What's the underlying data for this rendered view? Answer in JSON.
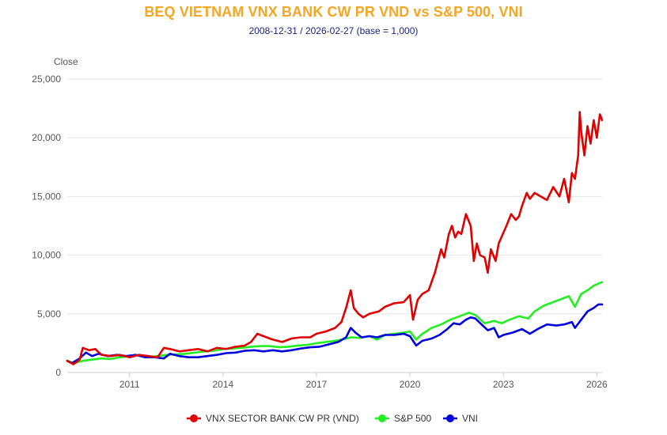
{
  "title": "BEQ VIETNAM VNX BANK CW PR VND vs S&P 500, VNI",
  "subtitle": "2008-12-31 / 2026-02-27 (base = 1,000)",
  "chart_data": {
    "type": "line",
    "title": "BEQ VIETNAM VNX BANK CW PR VND vs S&P 500, VNI",
    "subtitle": "2008-12-31 / 2026-02-27 (base = 1,000)",
    "ylabel": "Close",
    "xlabel": "",
    "xlim": [
      2009.0,
      2026.17
    ],
    "ylim": [
      0,
      25000
    ],
    "yticks": [
      0,
      5000,
      10000,
      15000,
      20000,
      25000
    ],
    "ytick_labels": [
      "0",
      "5,000",
      "10,000",
      "15,000",
      "20,000",
      "25,000"
    ],
    "xticks": [
      2011,
      2014,
      2017,
      2020,
      2023,
      2026
    ],
    "xtick_labels": [
      "2011",
      "2014",
      "2017",
      "2020",
      "2023",
      "2026"
    ],
    "grid": "horizontal",
    "legend_position": "bottom-center",
    "series": [
      {
        "name": "VNX SECTOR BANK CW PR (VND)",
        "color": "#e00000",
        "x": [
          2009.0,
          2009.2,
          2009.4,
          2009.5,
          2009.7,
          2009.9,
          2010.1,
          2010.4,
          2010.7,
          2011.0,
          2011.3,
          2011.6,
          2011.9,
          2012.1,
          2012.3,
          2012.6,
          2012.9,
          2013.2,
          2013.5,
          2013.8,
          2014.1,
          2014.4,
          2014.7,
          2014.9,
          2015.1,
          2015.4,
          2015.6,
          2015.9,
          2016.2,
          2016.5,
          2016.8,
          2017.0,
          2017.3,
          2017.6,
          2017.8,
          2017.95,
          2018.1,
          2018.2,
          2018.35,
          2018.5,
          2018.7,
          2019.0,
          2019.2,
          2019.5,
          2019.8,
          2020.0,
          2020.1,
          2020.25,
          2020.4,
          2020.6,
          2020.8,
          2021.0,
          2021.1,
          2021.25,
          2021.35,
          2021.45,
          2021.55,
          2021.65,
          2021.8,
          2021.95,
          2022.05,
          2022.15,
          2022.25,
          2022.4,
          2022.5,
          2022.6,
          2022.75,
          2022.85,
          2022.95,
          2023.1,
          2023.25,
          2023.4,
          2023.5,
          2023.6,
          2023.75,
          2023.85,
          2024.0,
          2024.2,
          2024.4,
          2024.6,
          2024.8,
          2024.95,
          2025.1,
          2025.2,
          2025.3,
          2025.4,
          2025.45,
          2025.5,
          2025.6,
          2025.7,
          2025.8,
          2025.9,
          2026.0,
          2026.1,
          2026.17
        ],
        "values": [
          1000,
          700,
          1100,
          2100,
          1900,
          2000,
          1500,
          1400,
          1500,
          1300,
          1500,
          1400,
          1300,
          2100,
          2000,
          1800,
          1900,
          2000,
          1800,
          2100,
          2000,
          2200,
          2300,
          2600,
          3300,
          3000,
          2800,
          2600,
          2900,
          3000,
          3000,
          3300,
          3500,
          3800,
          4300,
          5500,
          7000,
          5500,
          5000,
          4700,
          5000,
          5200,
          5600,
          5900,
          6000,
          6600,
          4500,
          6200,
          6700,
          7000,
          8500,
          10500,
          9800,
          11800,
          12500,
          11500,
          12000,
          11800,
          13500,
          12500,
          9500,
          11000,
          10000,
          9800,
          8500,
          10500,
          9500,
          11000,
          11600,
          12500,
          13500,
          13000,
          13300,
          14200,
          15300,
          14800,
          15300,
          15000,
          14700,
          15800,
          15000,
          16500,
          14500,
          17000,
          16500,
          18500,
          22200,
          20500,
          18500,
          21000,
          19500,
          21500,
          20000,
          22000,
          21500
        ]
      },
      {
        "name": "S&P 500",
        "color": "#22ee22",
        "x": [
          2009.0,
          2009.2,
          2009.5,
          2009.8,
          2010.1,
          2010.4,
          2010.7,
          2011.0,
          2011.3,
          2011.6,
          2011.9,
          2012.2,
          2012.5,
          2012.8,
          2013.1,
          2013.4,
          2013.7,
          2014.0,
          2014.3,
          2014.6,
          2014.9,
          2015.2,
          2015.5,
          2015.8,
          2016.1,
          2016.4,
          2016.7,
          2017.0,
          2017.3,
          2017.6,
          2017.9,
          2018.1,
          2018.4,
          2018.7,
          2018.95,
          2019.2,
          2019.5,
          2019.8,
          2020.0,
          2020.2,
          2020.4,
          2020.7,
          2021.0,
          2021.3,
          2021.6,
          2021.9,
          2022.1,
          2022.4,
          2022.7,
          2022.95,
          2023.2,
          2023.5,
          2023.8,
          2024.0,
          2024.3,
          2024.6,
          2024.9,
          2025.1,
          2025.3,
          2025.5,
          2025.7,
          2025.9,
          2026.17
        ],
        "values": [
          1000,
          800,
          1000,
          1100,
          1200,
          1150,
          1300,
          1400,
          1500,
          1300,
          1400,
          1500,
          1550,
          1600,
          1700,
          1800,
          1850,
          2000,
          2050,
          2100,
          2200,
          2250,
          2250,
          2150,
          2200,
          2300,
          2350,
          2500,
          2600,
          2700,
          2850,
          3000,
          2950,
          3100,
          2800,
          3200,
          3300,
          3400,
          3500,
          2800,
          3300,
          3800,
          4100,
          4500,
          4800,
          5100,
          4900,
          4200,
          4400,
          4200,
          4500,
          4800,
          4600,
          5200,
          5700,
          6000,
          6300,
          6500,
          5600,
          6700,
          7000,
          7400,
          7700
        ]
      },
      {
        "name": "VNI",
        "color": "#0000dd",
        "x": [
          2009.0,
          2009.15,
          2009.4,
          2009.6,
          2009.8,
          2010.0,
          2010.3,
          2010.6,
          2010.9,
          2011.2,
          2011.5,
          2011.8,
          2012.1,
          2012.3,
          2012.6,
          2012.9,
          2013.2,
          2013.5,
          2013.8,
          2014.1,
          2014.4,
          2014.7,
          2015.0,
          2015.3,
          2015.6,
          2015.9,
          2016.2,
          2016.5,
          2016.8,
          2017.1,
          2017.4,
          2017.7,
          2017.95,
          2018.1,
          2018.25,
          2018.45,
          2018.7,
          2018.95,
          2019.2,
          2019.5,
          2019.8,
          2020.0,
          2020.2,
          2020.4,
          2020.7,
          2020.95,
          2021.2,
          2021.4,
          2021.6,
          2021.8,
          2021.95,
          2022.1,
          2022.3,
          2022.5,
          2022.7,
          2022.85,
          2023.0,
          2023.3,
          2023.6,
          2023.85,
          2024.1,
          2024.4,
          2024.7,
          2024.95,
          2025.2,
          2025.3,
          2025.5,
          2025.7,
          2025.9,
          2026.05,
          2026.17
        ],
        "values": [
          1000,
          800,
          1200,
          1700,
          1400,
          1600,
          1400,
          1500,
          1400,
          1500,
          1300,
          1300,
          1200,
          1600,
          1400,
          1300,
          1300,
          1400,
          1500,
          1650,
          1700,
          1850,
          1900,
          1800,
          1900,
          1800,
          1900,
          2050,
          2150,
          2200,
          2400,
          2600,
          3000,
          3800,
          3400,
          3000,
          3100,
          3000,
          3200,
          3200,
          3300,
          3100,
          2300,
          2700,
          2900,
          3200,
          3700,
          4200,
          4100,
          4500,
          4700,
          4600,
          4100,
          3600,
          3800,
          3000,
          3200,
          3400,
          3700,
          3300,
          3700,
          4100,
          4000,
          4100,
          4300,
          3800,
          4500,
          5200,
          5500,
          5800,
          5800
        ]
      }
    ]
  }
}
